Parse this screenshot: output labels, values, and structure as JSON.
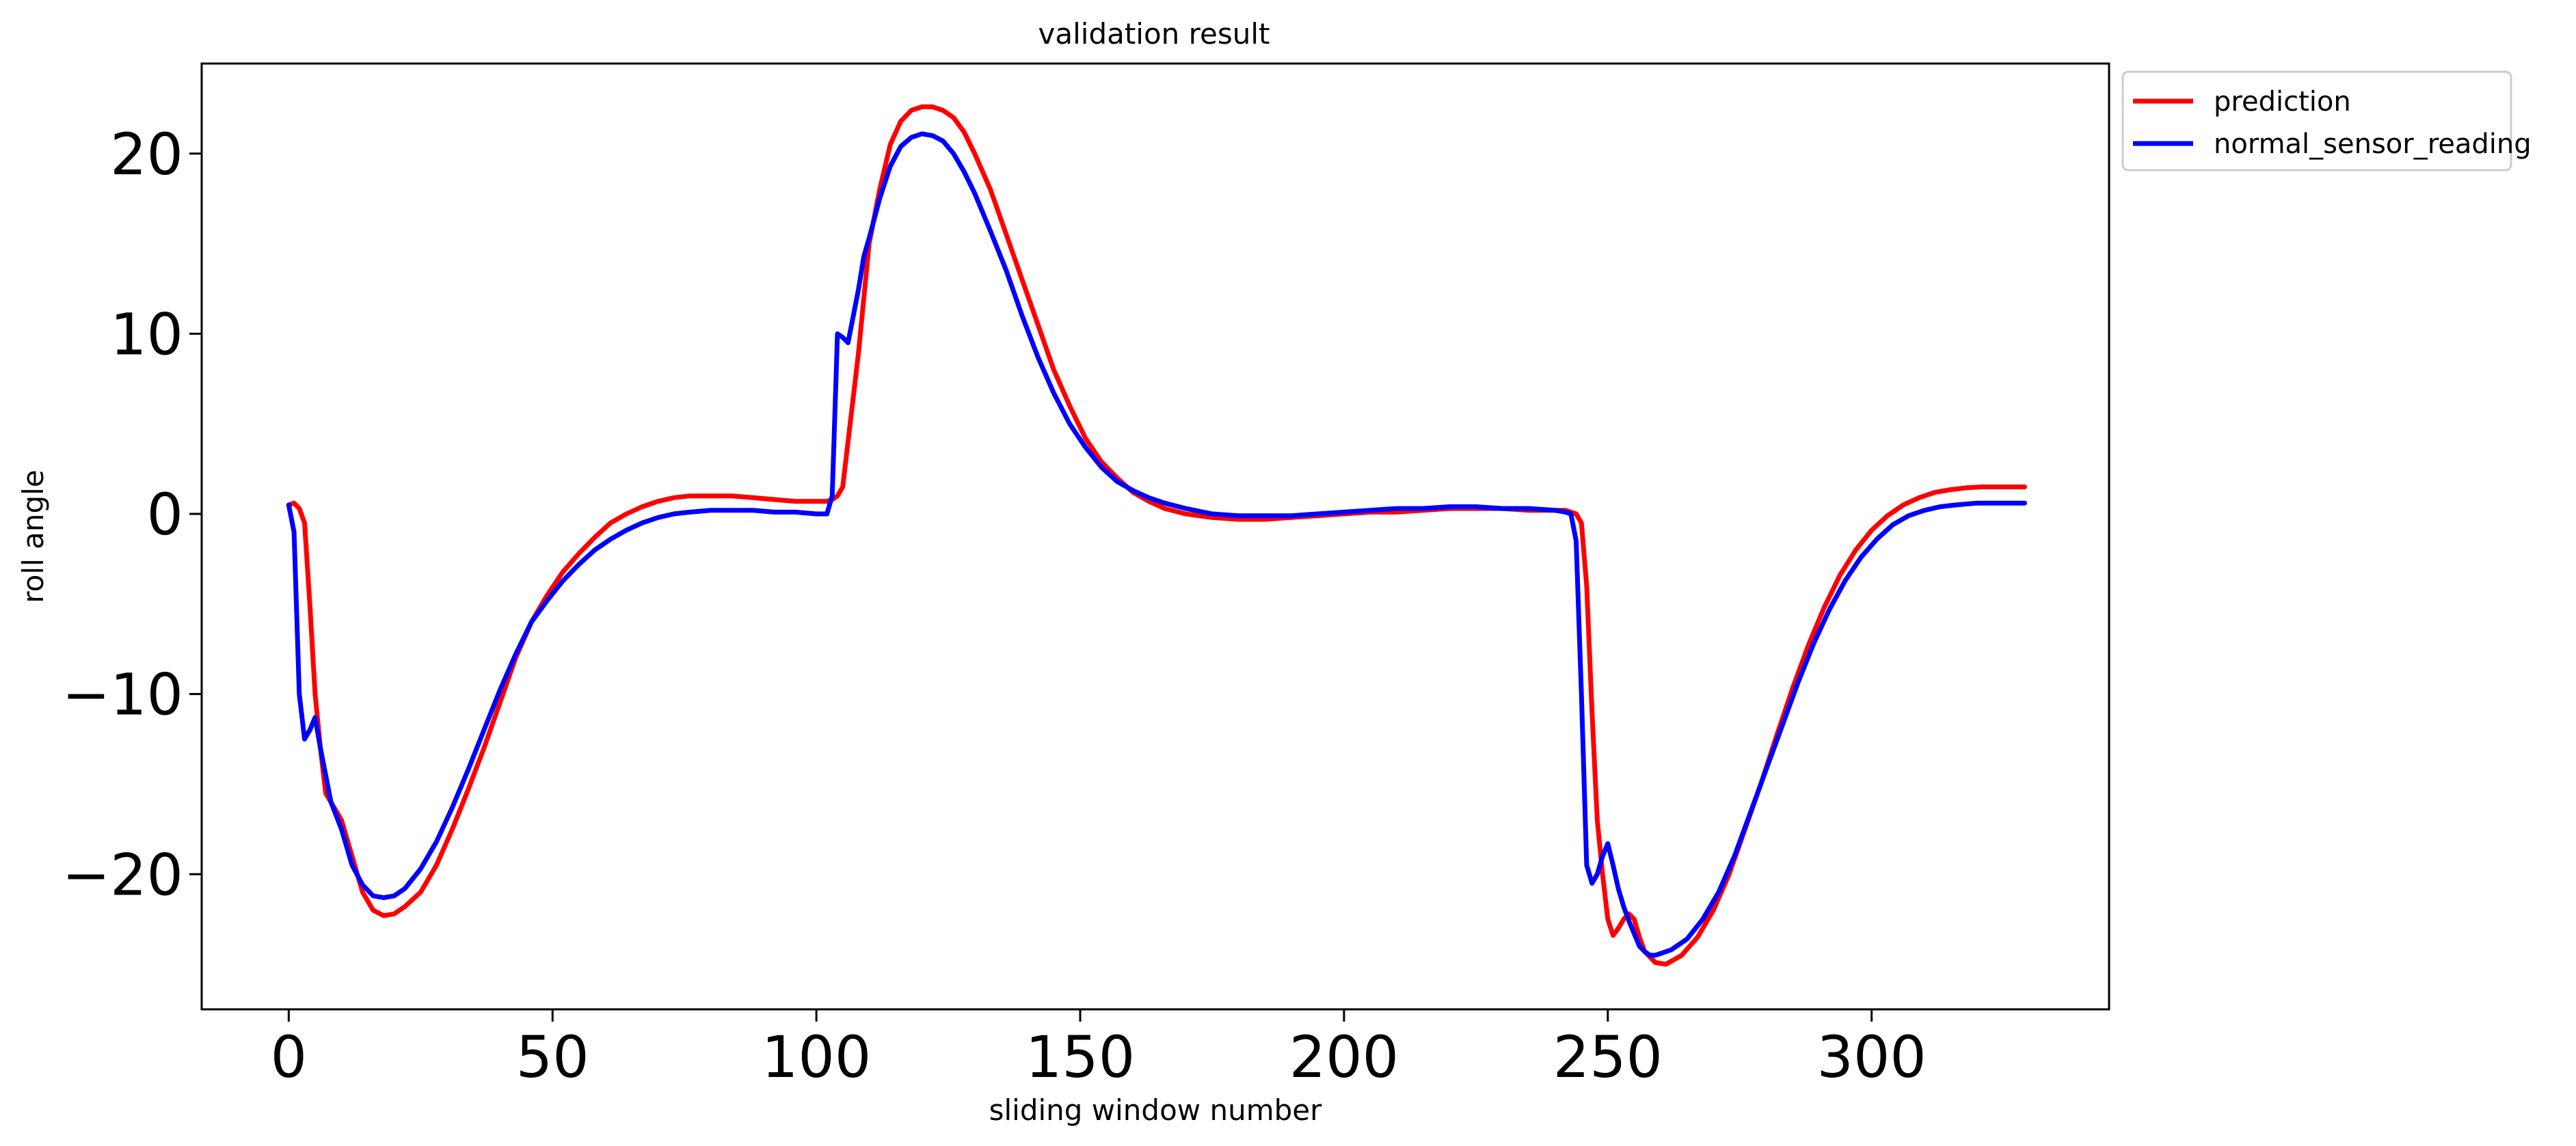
{
  "chart_data": {
    "type": "line",
    "title": "validation result",
    "xlabel": "sliding window number",
    "ylabel": "roll angle",
    "xlim": [
      -16.5,
      345
    ],
    "ylim": [
      -27.5,
      25
    ],
    "xticks": [
      0,
      50,
      100,
      150,
      200,
      250,
      300
    ],
    "yticks": [
      -20,
      -10,
      0,
      10,
      20
    ],
    "xtick_labels": [
      "0",
      "50",
      "100",
      "150",
      "200",
      "250",
      "300"
    ],
    "ytick_labels": [
      "−20",
      "−10",
      "0",
      "10",
      "20"
    ],
    "grid": false,
    "legend_position": "outside-top-right",
    "series": [
      {
        "name": "prediction",
        "color": "#ff0000",
        "points": [
          [
            0,
            0.5
          ],
          [
            1,
            0.6
          ],
          [
            2,
            0.3
          ],
          [
            3,
            -0.5
          ],
          [
            4,
            -5
          ],
          [
            5,
            -10
          ],
          [
            6,
            -13
          ],
          [
            7,
            -15.5
          ],
          [
            8,
            -16
          ],
          [
            10,
            -17
          ],
          [
            12,
            -19
          ],
          [
            14,
            -21
          ],
          [
            16,
            -22
          ],
          [
            18,
            -22.3
          ],
          [
            20,
            -22.2
          ],
          [
            22,
            -21.8
          ],
          [
            25,
            -21
          ],
          [
            28,
            -19.5
          ],
          [
            31,
            -17.5
          ],
          [
            34,
            -15.3
          ],
          [
            37,
            -13
          ],
          [
            40,
            -10.5
          ],
          [
            43,
            -8
          ],
          [
            46,
            -6
          ],
          [
            49,
            -4.5
          ],
          [
            52,
            -3.2
          ],
          [
            55,
            -2.2
          ],
          [
            58,
            -1.3
          ],
          [
            61,
            -0.5
          ],
          [
            64,
            0
          ],
          [
            67,
            0.4
          ],
          [
            70,
            0.7
          ],
          [
            73,
            0.9
          ],
          [
            76,
            1
          ],
          [
            80,
            1
          ],
          [
            84,
            1
          ],
          [
            88,
            0.9
          ],
          [
            92,
            0.8
          ],
          [
            96,
            0.7
          ],
          [
            100,
            0.7
          ],
          [
            102,
            0.7
          ],
          [
            103,
            0.8
          ],
          [
            104,
            1
          ],
          [
            105,
            1.5
          ],
          [
            106,
            4
          ],
          [
            107,
            6.5
          ],
          [
            108,
            9
          ],
          [
            109,
            12
          ],
          [
            110,
            15
          ],
          [
            112,
            18
          ],
          [
            114,
            20.5
          ],
          [
            116,
            21.8
          ],
          [
            118,
            22.4
          ],
          [
            120,
            22.6
          ],
          [
            122,
            22.6
          ],
          [
            124,
            22.4
          ],
          [
            126,
            22
          ],
          [
            128,
            21.2
          ],
          [
            130,
            20
          ],
          [
            133,
            18
          ],
          [
            136,
            15.5
          ],
          [
            139,
            13
          ],
          [
            142,
            10.5
          ],
          [
            145,
            8
          ],
          [
            148,
            6
          ],
          [
            151,
            4.2
          ],
          [
            154,
            2.9
          ],
          [
            157,
            2
          ],
          [
            160,
            1.2
          ],
          [
            163,
            0.7
          ],
          [
            166,
            0.3
          ],
          [
            170,
            0
          ],
          [
            175,
            -0.2
          ],
          [
            180,
            -0.3
          ],
          [
            185,
            -0.3
          ],
          [
            190,
            -0.2
          ],
          [
            195,
            -0.1
          ],
          [
            200,
            0
          ],
          [
            205,
            0.1
          ],
          [
            210,
            0.1
          ],
          [
            215,
            0.2
          ],
          [
            220,
            0.3
          ],
          [
            225,
            0.3
          ],
          [
            230,
            0.3
          ],
          [
            235,
            0.2
          ],
          [
            240,
            0.2
          ],
          [
            242,
            0.2
          ],
          [
            243,
            0.1
          ],
          [
            244,
            0
          ],
          [
            245,
            -0.5
          ],
          [
            246,
            -4
          ],
          [
            247,
            -11
          ],
          [
            248,
            -17
          ],
          [
            249,
            -20
          ],
          [
            250,
            -22.5
          ],
          [
            251,
            -23.4
          ],
          [
            252,
            -23
          ],
          [
            253,
            -22.5
          ],
          [
            254,
            -22.2
          ],
          [
            255,
            -22.5
          ],
          [
            256,
            -23.5
          ],
          [
            257,
            -24.3
          ],
          [
            259,
            -24.9
          ],
          [
            261,
            -25
          ],
          [
            264,
            -24.5
          ],
          [
            267,
            -23.5
          ],
          [
            270,
            -22
          ],
          [
            273,
            -20
          ],
          [
            276,
            -17.5
          ],
          [
            279,
            -15
          ],
          [
            282,
            -12.3
          ],
          [
            285,
            -9.7
          ],
          [
            288,
            -7.3
          ],
          [
            291,
            -5.2
          ],
          [
            294,
            -3.4
          ],
          [
            297,
            -2
          ],
          [
            300,
            -0.9
          ],
          [
            303,
            -0.1
          ],
          [
            306,
            0.5
          ],
          [
            309,
            0.9
          ],
          [
            312,
            1.2
          ],
          [
            315,
            1.35
          ],
          [
            318,
            1.45
          ],
          [
            321,
            1.5
          ],
          [
            325,
            1.5
          ],
          [
            329,
            1.5
          ]
        ]
      },
      {
        "name": "normal_sensor_reading",
        "color": "#0000ff",
        "points": [
          [
            0,
            0.5
          ],
          [
            1,
            -1
          ],
          [
            2,
            -10
          ],
          [
            3,
            -12.5
          ],
          [
            4,
            -12
          ],
          [
            5,
            -11.3
          ],
          [
            6,
            -13
          ],
          [
            7,
            -14.5
          ],
          [
            8,
            -16
          ],
          [
            10,
            -17.5
          ],
          [
            12,
            -19.5
          ],
          [
            14,
            -20.6
          ],
          [
            16,
            -21.2
          ],
          [
            18,
            -21.3
          ],
          [
            20,
            -21.2
          ],
          [
            22,
            -20.8
          ],
          [
            25,
            -19.7
          ],
          [
            28,
            -18.2
          ],
          [
            31,
            -16.3
          ],
          [
            34,
            -14.2
          ],
          [
            37,
            -12
          ],
          [
            40,
            -9.8
          ],
          [
            43,
            -7.8
          ],
          [
            46,
            -6
          ],
          [
            49,
            -4.8
          ],
          [
            52,
            -3.7
          ],
          [
            55,
            -2.8
          ],
          [
            58,
            -2
          ],
          [
            61,
            -1.4
          ],
          [
            64,
            -0.9
          ],
          [
            67,
            -0.5
          ],
          [
            70,
            -0.2
          ],
          [
            73,
            0
          ],
          [
            76,
            0.1
          ],
          [
            80,
            0.2
          ],
          [
            84,
            0.2
          ],
          [
            88,
            0.2
          ],
          [
            92,
            0.1
          ],
          [
            96,
            0.1
          ],
          [
            100,
            0
          ],
          [
            102,
            0
          ],
          [
            103,
            1
          ],
          [
            104,
            10
          ],
          [
            105,
            9.8
          ],
          [
            106,
            9.5
          ],
          [
            107,
            11
          ],
          [
            108,
            12.5
          ],
          [
            109,
            14.3
          ],
          [
            110,
            15.3
          ],
          [
            112,
            17.5
          ],
          [
            114,
            19.3
          ],
          [
            116,
            20.4
          ],
          [
            118,
            20.9
          ],
          [
            120,
            21.1
          ],
          [
            122,
            21
          ],
          [
            124,
            20.7
          ],
          [
            126,
            20
          ],
          [
            128,
            19
          ],
          [
            130,
            17.8
          ],
          [
            133,
            15.7
          ],
          [
            136,
            13.5
          ],
          [
            139,
            11
          ],
          [
            142,
            8.7
          ],
          [
            145,
            6.7
          ],
          [
            148,
            5
          ],
          [
            151,
            3.7
          ],
          [
            154,
            2.6
          ],
          [
            157,
            1.8
          ],
          [
            160,
            1.3
          ],
          [
            163,
            0.9
          ],
          [
            166,
            0.6
          ],
          [
            170,
            0.3
          ],
          [
            175,
            0
          ],
          [
            180,
            -0.1
          ],
          [
            185,
            -0.1
          ],
          [
            190,
            -0.1
          ],
          [
            195,
            0
          ],
          [
            200,
            0.1
          ],
          [
            205,
            0.2
          ],
          [
            210,
            0.3
          ],
          [
            215,
            0.3
          ],
          [
            220,
            0.4
          ],
          [
            225,
            0.4
          ],
          [
            230,
            0.3
          ],
          [
            235,
            0.3
          ],
          [
            240,
            0.2
          ],
          [
            242,
            0.1
          ],
          [
            243,
            0
          ],
          [
            244,
            -1.5
          ],
          [
            245,
            -10
          ],
          [
            246,
            -19.5
          ],
          [
            247,
            -20.5
          ],
          [
            248,
            -20
          ],
          [
            249,
            -19
          ],
          [
            250,
            -18.3
          ],
          [
            251,
            -19.5
          ],
          [
            252,
            -20.8
          ],
          [
            253,
            -21.8
          ],
          [
            254,
            -22.6
          ],
          [
            255,
            -23.3
          ],
          [
            256,
            -24
          ],
          [
            257,
            -24.3
          ],
          [
            258,
            -24.5
          ],
          [
            259,
            -24.5
          ],
          [
            260,
            -24.4
          ],
          [
            262,
            -24.2
          ],
          [
            265,
            -23.6
          ],
          [
            268,
            -22.5
          ],
          [
            271,
            -21
          ],
          [
            274,
            -19
          ],
          [
            277,
            -16.6
          ],
          [
            280,
            -14.2
          ],
          [
            283,
            -11.8
          ],
          [
            286,
            -9.4
          ],
          [
            289,
            -7.2
          ],
          [
            292,
            -5.3
          ],
          [
            295,
            -3.7
          ],
          [
            298,
            -2.4
          ],
          [
            301,
            -1.4
          ],
          [
            304,
            -0.6
          ],
          [
            307,
            -0.1
          ],
          [
            310,
            0.2
          ],
          [
            313,
            0.4
          ],
          [
            316,
            0.5
          ],
          [
            320,
            0.6
          ],
          [
            325,
            0.6
          ],
          [
            329,
            0.6
          ]
        ]
      }
    ]
  }
}
